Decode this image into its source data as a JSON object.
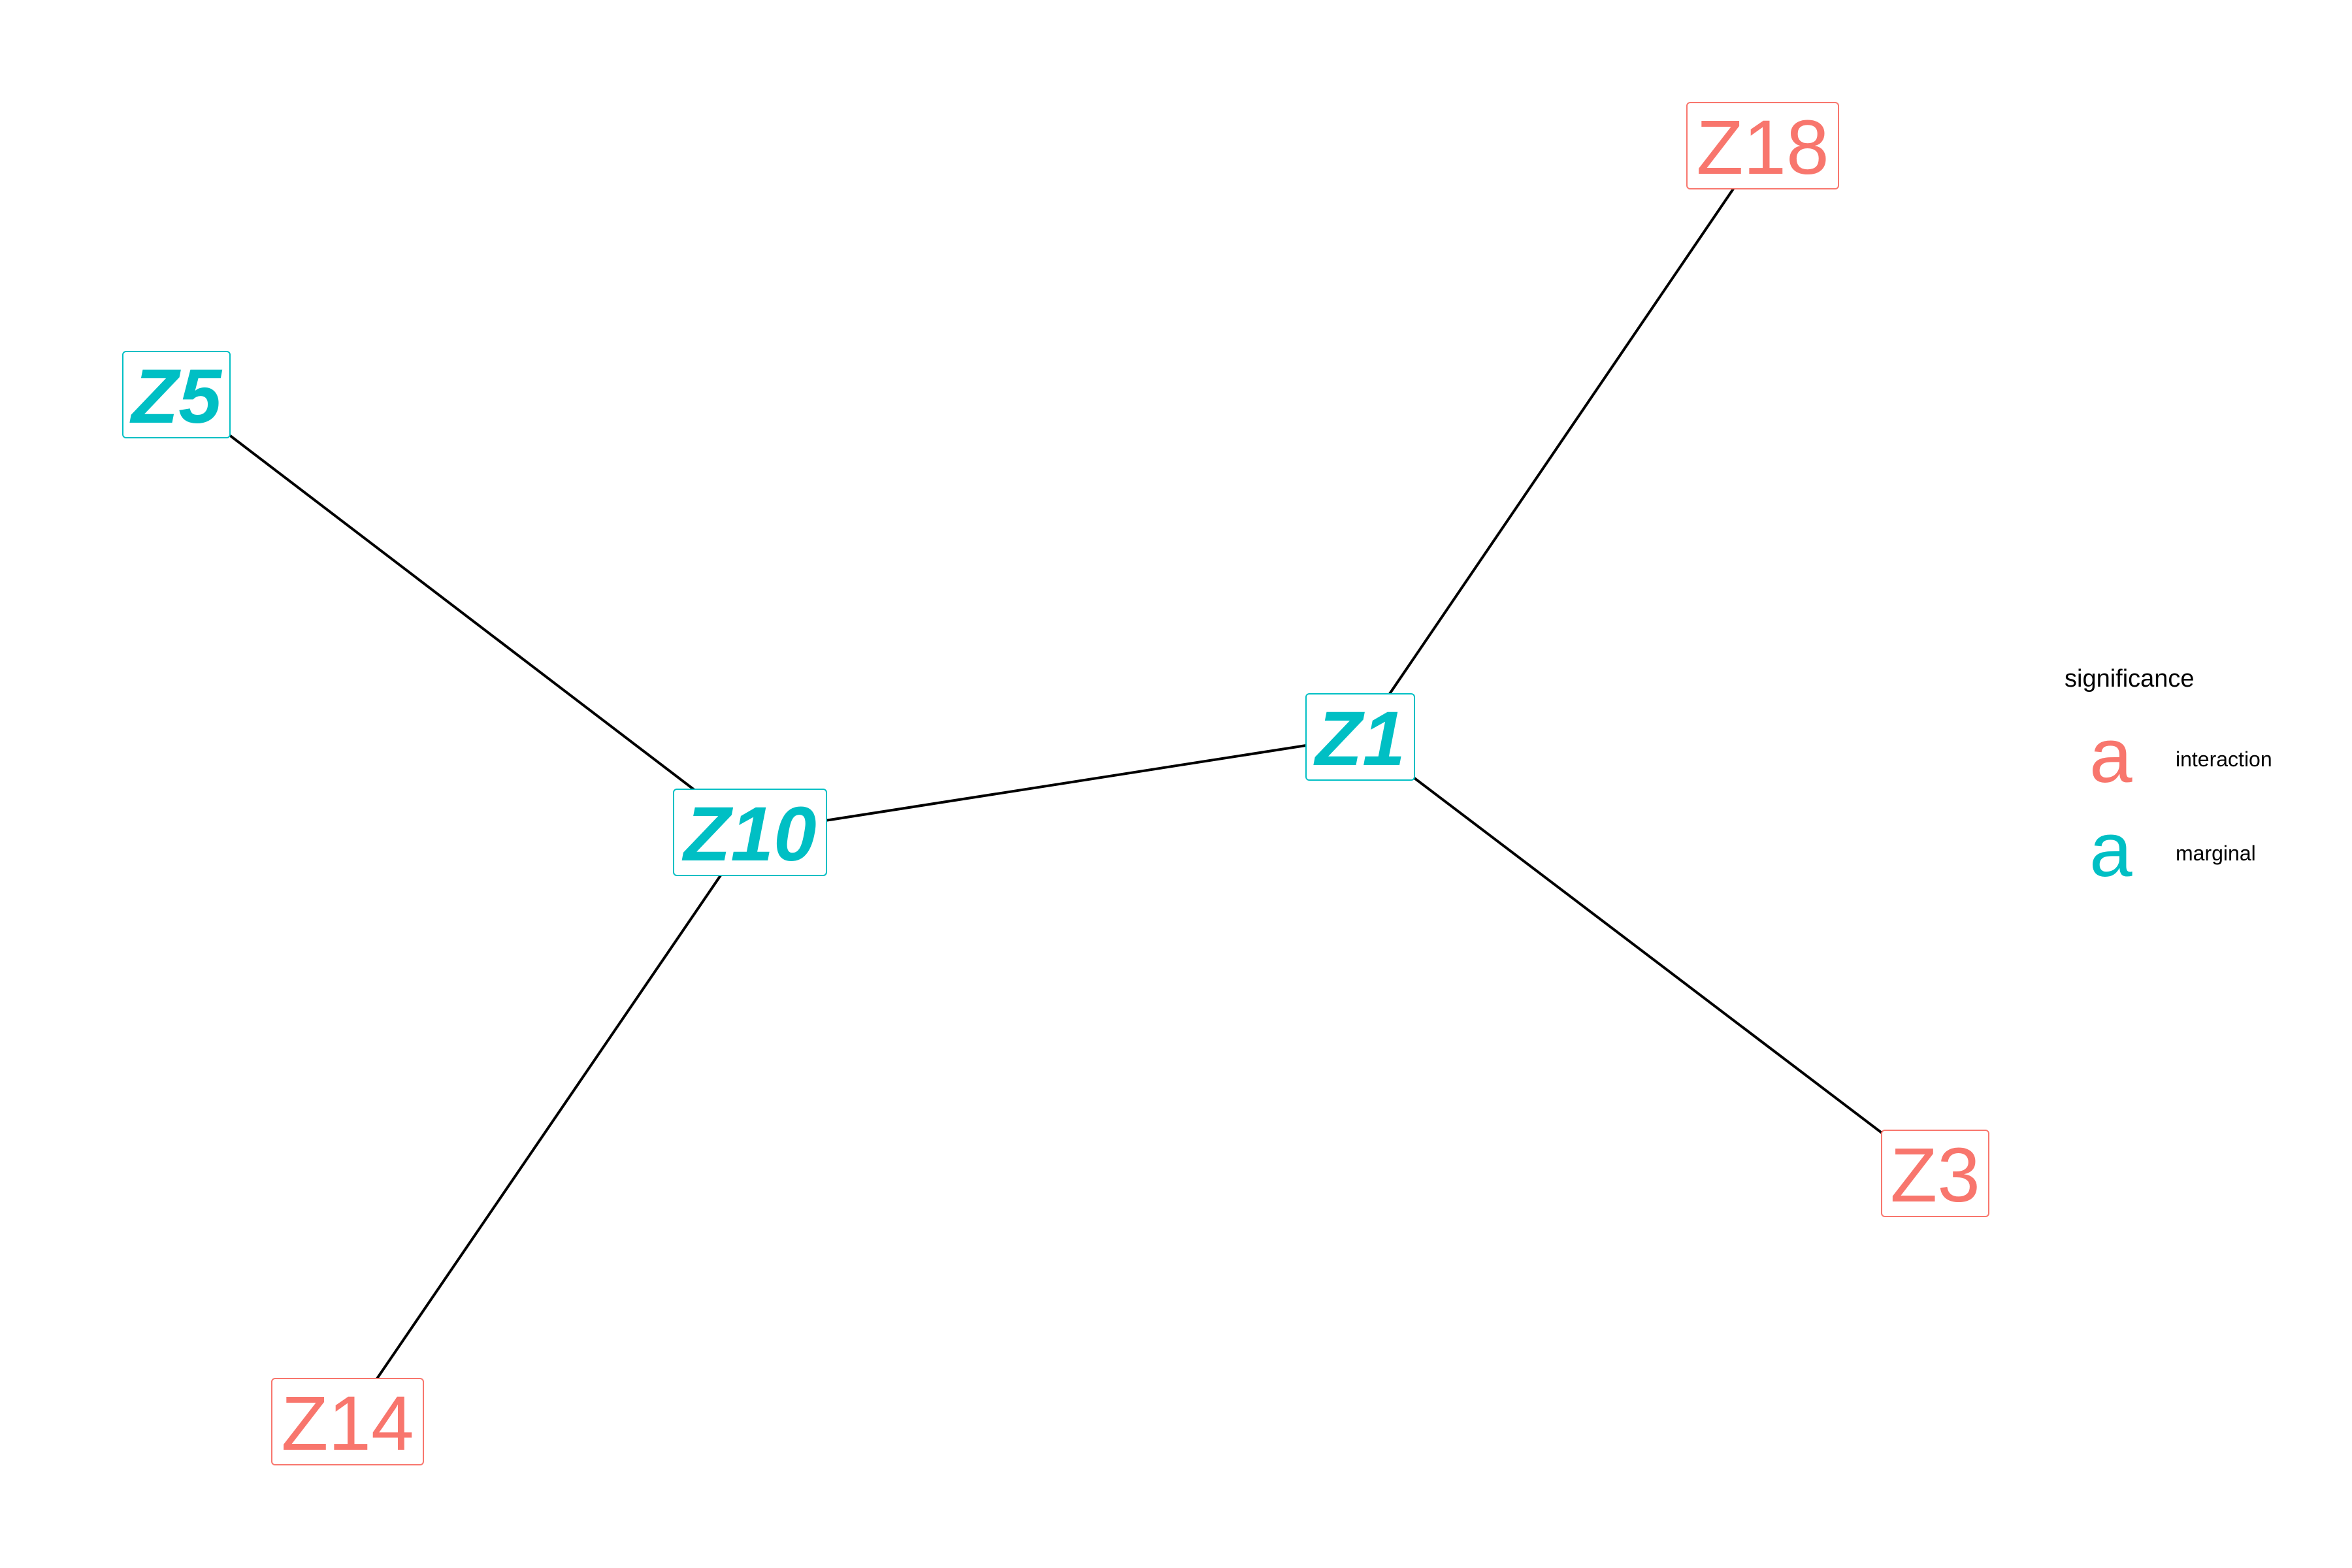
{
  "colors": {
    "interaction": "#F8766D",
    "marginal": "#00BFC4",
    "edge": "#000000"
  },
  "nodes": [
    {
      "id": "Z18",
      "label": "Z18",
      "significance": "interaction"
    },
    {
      "id": "Z5",
      "label": "Z5",
      "significance": "marginal"
    },
    {
      "id": "Z1",
      "label": "Z1",
      "significance": "marginal"
    },
    {
      "id": "Z10",
      "label": "Z10",
      "significance": "marginal"
    },
    {
      "id": "Z3",
      "label": "Z3",
      "significance": "interaction"
    },
    {
      "id": "Z14",
      "label": "Z14",
      "significance": "interaction"
    }
  ],
  "edges": [
    {
      "from": "Z5",
      "to": "Z10"
    },
    {
      "from": "Z10",
      "to": "Z1"
    },
    {
      "from": "Z1",
      "to": "Z18"
    },
    {
      "from": "Z1",
      "to": "Z3"
    },
    {
      "from": "Z10",
      "to": "Z14"
    }
  ],
  "legend": {
    "title": "significance",
    "entries": [
      {
        "key": "a",
        "label": "interaction",
        "significance": "interaction"
      },
      {
        "key": "a",
        "label": "marginal",
        "significance": "marginal"
      }
    ]
  }
}
